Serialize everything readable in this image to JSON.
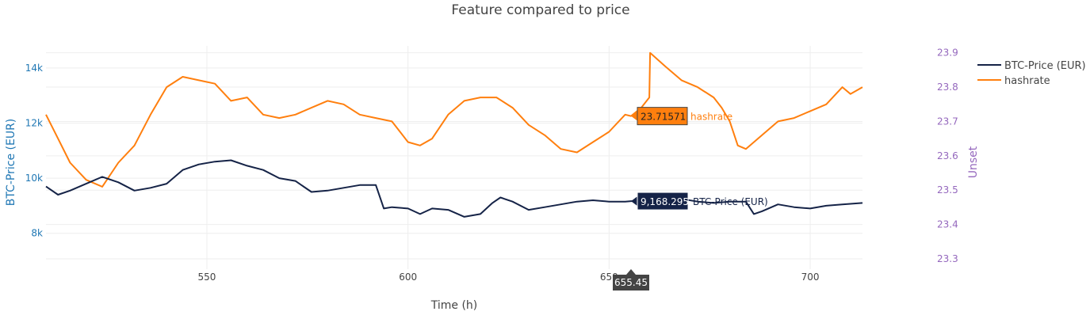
{
  "chart_data": {
    "type": "line",
    "title": "Feature compared to price",
    "xlabel": "Time (h)",
    "ylabel_left": "BTC-Price (EUR)",
    "ylabel_right": "Unset",
    "xlim": [
      510,
      713
    ],
    "ylim_left": [
      6700,
      14800
    ],
    "ylim_right": [
      23.27,
      23.92
    ],
    "x_ticks": [
      550,
      600,
      650,
      700
    ],
    "x_tick_labels": [
      "550",
      "600",
      "650",
      "700"
    ],
    "y_left_ticks": [
      8000,
      10000,
      12000,
      14000
    ],
    "y_left_tick_labels": [
      "8k",
      "10k",
      "12k",
      "14k"
    ],
    "y_right_ticks": [
      23.3,
      23.4,
      23.5,
      23.6,
      23.7,
      23.8,
      23.9
    ],
    "y_right_tick_labels": [
      "23.3",
      "23.4",
      "23.5",
      "23.6",
      "23.7",
      "23.8",
      "23.9"
    ],
    "grid": true,
    "legend_position": "top-right",
    "colors": {
      "btc": "#152347",
      "hashrate": "#ff7f0e",
      "left_axis": "#1f77b4",
      "right_axis": "#9467bd",
      "grid": "#eeeeee",
      "text": "#444444"
    },
    "series": [
      {
        "name": "BTC-Price (EUR)",
        "axis": "left",
        "x": [
          510,
          513,
          516,
          520,
          524,
          528,
          532,
          536,
          540,
          544,
          548,
          552,
          556,
          560,
          564,
          568,
          572,
          576,
          580,
          584,
          588,
          592,
          594,
          596,
          600,
          603,
          606,
          610,
          614,
          618,
          621,
          623,
          626,
          630,
          634,
          638,
          642,
          646,
          650,
          654,
          655.45,
          660,
          664,
          668,
          672,
          676,
          680,
          684,
          686,
          688,
          692,
          696,
          700,
          704,
          708,
          713
        ],
        "y": [
          9700,
          9400,
          9550,
          9800,
          10050,
          9850,
          9550,
          9650,
          9800,
          10300,
          10500,
          10600,
          10650,
          10450,
          10300,
          10000,
          9900,
          9500,
          9550,
          9650,
          9750,
          9750,
          8900,
          8950,
          8900,
          8700,
          8900,
          8850,
          8600,
          8700,
          9100,
          9300,
          9150,
          8850,
          8950,
          9050,
          9150,
          9200,
          9150,
          9150,
          9168.295,
          9200,
          9300,
          9250,
          9150,
          9100,
          9150,
          9150,
          8700,
          8800,
          9050,
          8950,
          8900,
          9000,
          9050,
          9100
        ]
      },
      {
        "name": "hashrate",
        "axis": "right",
        "x": [
          510,
          513,
          516,
          520,
          524,
          528,
          532,
          536,
          540,
          544,
          548,
          552,
          556,
          560,
          564,
          568,
          572,
          576,
          580,
          584,
          588,
          592,
          596,
          600,
          603,
          606,
          610,
          614,
          618,
          622,
          626,
          630,
          634,
          638,
          642,
          646,
          650,
          654,
          655.45,
          658,
          660,
          660.2,
          664,
          668,
          672,
          676,
          678,
          680,
          682,
          684,
          688,
          692,
          696,
          700,
          704,
          708,
          710,
          713
        ],
        "y": [
          23.72,
          23.65,
          23.58,
          23.53,
          23.51,
          23.58,
          23.63,
          23.72,
          23.8,
          23.83,
          23.82,
          23.81,
          23.76,
          23.77,
          23.72,
          23.71,
          23.72,
          23.74,
          23.76,
          23.75,
          23.72,
          23.71,
          23.7,
          23.64,
          23.63,
          23.65,
          23.72,
          23.76,
          23.77,
          23.77,
          23.74,
          23.69,
          23.66,
          23.62,
          23.61,
          23.64,
          23.67,
          23.72,
          23.71571,
          23.74,
          23.77,
          23.9,
          23.86,
          23.82,
          23.8,
          23.77,
          23.74,
          23.7,
          23.63,
          23.62,
          23.66,
          23.7,
          23.71,
          23.73,
          23.75,
          23.8,
          23.78,
          23.8
        ]
      }
    ],
    "hover": {
      "x_value": "655.45",
      "btc_label": "9,168.295",
      "btc_name": "BTC-Price (EUR)",
      "hashrate_label": "23.71571",
      "hashrate_name": "hashrate"
    }
  }
}
